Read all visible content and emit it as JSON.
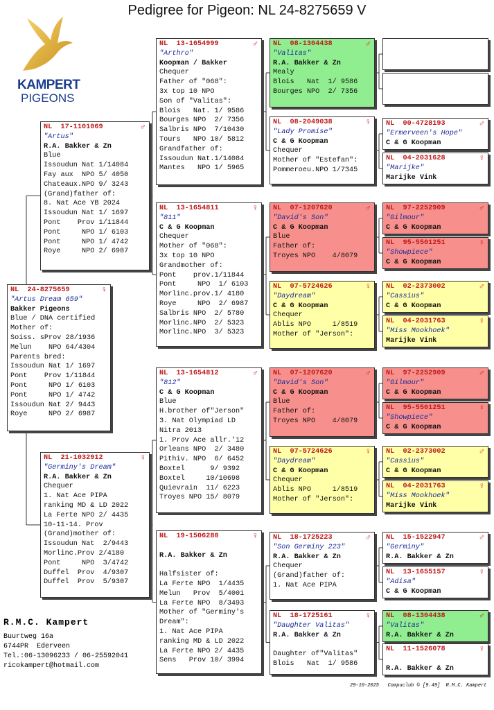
{
  "title": "Pedigree for Pigeon: NL  24-8275659 V",
  "logo": {
    "brand": "KAMPERT",
    "sub": "PIGEONS"
  },
  "pedigree": [
    {
      "ring": "NL  24-8275659",
      "sex": "♀",
      "name": "\"Artus Dream 659\"",
      "owner": "Bakker Pigeons",
      "lines": [
        "Blue / DNA certified",
        "Mother of:",
        "Soiss. sProv 28/1936",
        "Melun    NPO 64/4304",
        "Parents bred:",
        "Issoudun Nat 1/ 1697",
        "Pont    Prov 1/11844",
        "Pont     NPO 1/ 6103",
        "Pont     NPO 1/ 4742",
        "Issoudun Nat 2/ 9443",
        "Roye     NPO 2/ 6987"
      ]
    },
    {
      "ring": "NL  17-1101069",
      "sex": "♂",
      "name": "\"Artus\"",
      "owner": "R.A. Bakker & Zn",
      "lines": [
        "Blue",
        "Issoudun Nat 1/14084",
        "Fay aux  NPO 5/ 4050",
        "Chateaux.NPO 9/ 3243",
        "(Grand)father of:",
        "8. Nat Ace YB 2024",
        "Issoudun Nat 1/ 1697",
        "Pont    Prov 1/11844",
        "Pont     NPO 1/ 6103",
        "Pont     NPO 1/ 4742",
        "Roye     NPO 2/ 6987"
      ]
    },
    {
      "ring": "NL  21-1032912",
      "sex": "♀",
      "name": "\"Germiny's Dream\"",
      "owner": "R.A. Bakker & Zn",
      "lines": [
        "Chequer",
        "1. Nat Ace PIPA",
        "ranking MD & LD 2022",
        "La Ferte NPO 2/ 4435",
        "10-11-14. Prov",
        "(Grand)mother of:",
        "Issoudun Nat  2/9443",
        "Morlinc.Prov 2/4180",
        "Pont     NPO  3/4742",
        "Duffel  Prov  4/9307",
        "Duffel  Prov  5/9307"
      ]
    },
    {
      "ring": "NL  13-1654999",
      "sex": "♂",
      "name": "\"Arthro\"",
      "owner": "Koopman / Bakker",
      "lines": [
        "Chequer",
        "Father of \"068\":",
        "3x top 10 NPO",
        "Son of \"Valitas\":",
        "Blois   Nat. 1/ 9586",
        "Bourges NPO  2/ 7356",
        "Salbris NPO  7/10430",
        "Tours   NPO 10/ 5812",
        "Grandfather of:",
        "Issoudun Nat.1/14084",
        "Mantes   NPO 1/ 5965"
      ]
    },
    {
      "ring": "NL  13-1654811",
      "sex": "♀",
      "name": "\"811\"",
      "owner": "C & G Koopman",
      "lines": [
        "Chequer",
        "Mother of \"068\":",
        "3x top 10 NPO",
        "Grandmother of:",
        "Pont    prov.1/11844",
        "Pont     NPO  1/ 6103",
        "Morlinc.prov.1/ 4180",
        "Roye     NPO  2/ 6987",
        "Salbris NPO  2/ 5780",
        "Morlinc.NPO  2/ 5323",
        "Morlinc.NPO  3/ 5323"
      ]
    },
    {
      "ring": "NL  13-1654812",
      "sex": "♂",
      "name": "\"812\"",
      "owner": "C & G Koopman",
      "lines": [
        "Blue",
        "H.brother of\"Jerson\"",
        "3. Nat Olympiad LD",
        "Nitra 2013",
        "1. Prov Ace allr.'12",
        "Orleans NPO  2/ 3480",
        "Pithiv. NPO  6/ 6452",
        "Boxtel      9/ 9392",
        "Boxtel     10/10698",
        "Quievrain  11/ 6223",
        "Troyes NPO 15/ 8079"
      ]
    },
    {
      "ring": "NL  19-1506280",
      "sex": "♀",
      "owner": "R.A. Bakker & Zn",
      "lines": [
        "Halfsister of:",
        "La Ferte NPO  1/4435",
        "Melun   Prov  5/4001",
        "La Ferte NPO  8/3493",
        "Mother of \"Germiny's",
        "Dream\":",
        "1. Nat Ace PIPA",
        "ranking MD & LD 2022",
        "La Ferte NPO 2/ 4435",
        "Sens   Prov 10/ 3994"
      ]
    },
    {
      "ring": "NL  08-1304438",
      "sex": "♂",
      "name": "\"Valitas\"",
      "owner": "R.A. Bakker & Zn",
      "color": "#90ee90",
      "lines": [
        "Mealy",
        "Blois   Nat  1/ 9586",
        "Bourges NPO  2/ 7356"
      ]
    },
    {
      "ring": "NL  08-2049038",
      "sex": "♀",
      "name": "\"Lady Promise\"",
      "owner": "C & G Koopman",
      "lines": [
        "Chequer",
        "Mother of \"Estefan\":",
        "Pommeroeu.NPO 1/7345"
      ]
    },
    {
      "ring": "NL  07-1207620",
      "sex": "♂",
      "name": "\"David's Son\"",
      "owner": "C & G Koopman",
      "color": "#f7908c",
      "lines": [
        "Blue",
        "Father of:",
        "Troyes NPO    4/8079"
      ]
    },
    {
      "ring": "NL  07-5724626",
      "sex": "♀",
      "name": "\"Daydream\"",
      "owner": "C & G Koopman",
      "color": "#ffffa8",
      "lines": [
        "Chequer",
        "Ablis NPO     1/8519",
        "Mother of \"Jerson\":"
      ]
    },
    {
      "ring": "NL  07-1207620",
      "sex": "♂",
      "name": "\"David's Son\"",
      "owner": "C & G Koopman",
      "color": "#f7908c",
      "lines": [
        "Blue",
        "Father of:",
        "Troyes NPO    4/8079"
      ]
    },
    {
      "ring": "NL  07-5724626",
      "sex": "♀",
      "name": "\"Daydream\"",
      "owner": "C & G Koopman",
      "color": "#ffffa8",
      "lines": [
        "Chequer",
        "Ablis NPO     1/8519",
        "Mother of \"Jerson\":"
      ]
    },
    {
      "ring": "NL  18-1725223",
      "sex": "♂",
      "name": "\"Son Germiny 223\"",
      "owner": "R.A. Bakker & Zn",
      "lines": [
        "Chequer",
        "(Grand)father of:",
        "1. Nat Ace PIPA"
      ]
    },
    {
      "ring": "NL  18-1725161",
      "sex": "♀",
      "name": "\"Daughter Valitas\"",
      "owner": "R.A. Bakker & Zn",
      "lines": [
        "Daughter of\"Valitas\"",
        "Blois   Nat  1/ 9586"
      ]
    },
    {
      "ring": "NL  00-4728193",
      "sex": "♂",
      "name": "\"Ermerveen's Hope\"",
      "owner": "C & G Koopman"
    },
    {
      "ring": "NL  04-2031628",
      "sex": "♀",
      "name": "\"Marijke\"",
      "owner": "Marijke Vink"
    },
    {
      "ring": "NL  97-2252909",
      "sex": "♂",
      "name": "\"Gilmour\"",
      "owner": "C & G Koopman",
      "color": "#f7908c"
    },
    {
      "ring": "NL  95-5501251",
      "sex": "♀",
      "name": "\"Showpiece\"",
      "owner": "C & G Koopman",
      "color": "#f7908c"
    },
    {
      "ring": "NL  02-2373002",
      "sex": "♂",
      "name": "\"Cassius\"",
      "owner": "C & G Koopman",
      "color": "#ffffa8"
    },
    {
      "ring": "NL  04-2031763",
      "sex": "♀",
      "name": "\"Miss Mookhoek\"",
      "owner": "Marijke Vink",
      "color": "#ffffa8"
    },
    {
      "ring": "NL  97-2252909",
      "sex": "♂",
      "name": "\"Gilmour\"",
      "owner": "C & G Koopman",
      "color": "#f7908c"
    },
    {
      "ring": "NL  95-5501251",
      "sex": "♀",
      "name": "\"Showpiece\"",
      "owner": "C & G Koopman",
      "color": "#f7908c"
    },
    {
      "ring": "NL  02-2373002",
      "sex": "♂",
      "name": "\"Cassius\"",
      "owner": "C & G Koopman",
      "color": "#ffffa8"
    },
    {
      "ring": "NL  04-2031763",
      "sex": "♀",
      "name": "\"Miss Mookhoek\"",
      "owner": "Marijke Vink",
      "color": "#ffffa8"
    },
    {
      "ring": "NL  15-1522947",
      "sex": "♂",
      "name": "\"Germiny\"",
      "owner": "R.A. Bakker & Zn"
    },
    {
      "ring": "NL  13-1655157",
      "sex": "♀",
      "name": "\"Adisa\"",
      "owner": "C & G Koopman"
    },
    {
      "ring": "NL  08-1304438",
      "sex": "♂",
      "name": "\"Valitas\"",
      "owner": "R.A. Bakker & Zn",
      "color": "#90ee90"
    },
    {
      "ring": "NL  11-1526078",
      "sex": "♀",
      "owner": "R.A. Bakker & Zn"
    }
  ],
  "footer": {
    "breeder": "R.M.C. Kampert",
    "address": [
      "Buurtweg 16a",
      "6744PR  Ederveen",
      "Tel.:06-13096233 / 06-25592041",
      "ricokampert@hotmail.com"
    ],
    "stamp": "29-10-2025   Compuclub © [9.49]  R.M.C. Kampert"
  }
}
